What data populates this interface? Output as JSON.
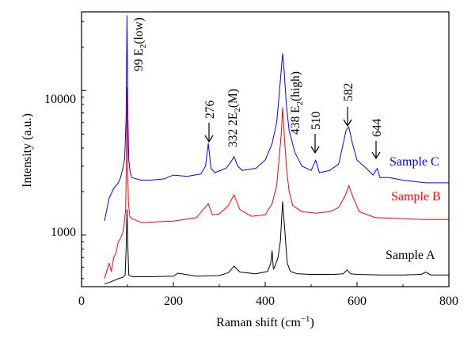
{
  "chart_data": {
    "type": "line",
    "xlabel": "Raman shift (cm",
    "xlabel_sup": "−1",
    "xlabel_close": ")",
    "ylabel": "Intensity (a.u.)",
    "xlim": [
      0,
      800
    ],
    "ylim": [
      440,
      35000
    ],
    "yscale": "log",
    "xticks": [
      0,
      200,
      400,
      600,
      800
    ],
    "yticks": [
      1000,
      10000
    ],
    "grid": false,
    "series": [
      {
        "name": "Sample A",
        "color": "#000000",
        "x": [
          50,
          60,
          70,
          80,
          90,
          95,
          97,
          99,
          101,
          103,
          110,
          150,
          200,
          210,
          250,
          300,
          320,
          332,
          345,
          380,
          405,
          412,
          415,
          418,
          422,
          428,
          433,
          438,
          443,
          448,
          455,
          470,
          500,
          550,
          570,
          578,
          586,
          600,
          650,
          700,
          740,
          750,
          760,
          800
        ],
        "y": [
          460,
          470,
          485,
          500,
          510,
          530,
          800,
          1500,
          800,
          530,
          515,
          515,
          520,
          545,
          520,
          525,
          550,
          610,
          555,
          540,
          560,
          640,
          780,
          580,
          620,
          700,
          900,
          1700,
          1050,
          640,
          560,
          540,
          535,
          535,
          540,
          575,
          540,
          535,
          530,
          530,
          535,
          555,
          530,
          530
        ]
      },
      {
        "name": "Sample B",
        "color": "#ff0000",
        "x": [
          50,
          60,
          65,
          70,
          75,
          80,
          85,
          90,
          93,
          96,
          98,
          99,
          100,
          102,
          105,
          110,
          130,
          150,
          200,
          250,
          265,
          276,
          285,
          300,
          320,
          332,
          345,
          370,
          400,
          415,
          425,
          430,
          435,
          438,
          441,
          446,
          452,
          460,
          480,
          510,
          540,
          560,
          575,
          582,
          592,
          605,
          640,
          700,
          750,
          800
        ],
        "y": [
          500,
          640,
          560,
          700,
          750,
          900,
          950,
          1050,
          1200,
          1500,
          3500,
          10500,
          3500,
          1700,
          1350,
          1300,
          1220,
          1230,
          1250,
          1320,
          1500,
          1650,
          1380,
          1400,
          1600,
          1900,
          1500,
          1350,
          1380,
          1650,
          2200,
          3300,
          5000,
          7600,
          5200,
          3000,
          2000,
          1600,
          1450,
          1420,
          1450,
          1550,
          1900,
          2200,
          1800,
          1450,
          1320,
          1300,
          1280,
          1280
        ]
      },
      {
        "name": "Sample C",
        "color": "#0000ff",
        "x": [
          50,
          60,
          70,
          80,
          85,
          90,
          94,
          97,
          99,
          101,
          103,
          106,
          110,
          130,
          150,
          180,
          200,
          230,
          260,
          270,
          276,
          282,
          290,
          315,
          325,
          332,
          340,
          350,
          380,
          400,
          415,
          425,
          430,
          435,
          438,
          441,
          446,
          452,
          465,
          480,
          500,
          510,
          518,
          540,
          560,
          570,
          576,
          582,
          590,
          600,
          620,
          635,
          644,
          650,
          670,
          700,
          750,
          800
        ],
        "y": [
          1250,
          1800,
          2100,
          2300,
          2500,
          2900,
          3400,
          6500,
          33000,
          6500,
          3300,
          2700,
          2500,
          2400,
          2400,
          2450,
          2600,
          2550,
          2650,
          3000,
          4300,
          2900,
          2700,
          2900,
          3200,
          3500,
          3000,
          2800,
          2900,
          3300,
          4300,
          6000,
          9000,
          14000,
          18000,
          14000,
          8000,
          5300,
          3700,
          3000,
          2800,
          3300,
          2700,
          2800,
          3100,
          4300,
          5300,
          5600,
          4300,
          3300,
          2900,
          2600,
          2900,
          2500,
          2500,
          2400,
          2300,
          2300
        ]
      }
    ]
  },
  "sample_labels": {
    "c": "Sample C",
    "b": "Sample B",
    "a": "Sample A"
  },
  "annotations": {
    "e2_low_prefix": "99 E",
    "e2_low_sub": "2",
    "e2_low_suffix": "(low)",
    "p276": "276",
    "p332_prefix": "332  2E",
    "p332_sub": "2",
    "p332_suffix": "(M)",
    "e2_high_prefix": "438 E",
    "e2_high_sub": "2",
    "e2_high_suffix": "(high)",
    "p510": "510",
    "p582": "582",
    "p644": "644"
  },
  "tick_labels": {
    "x0": "0",
    "x200": "200",
    "x400": "400",
    "x600": "600",
    "x800": "800",
    "y1000": "1000",
    "y10000": "10000"
  }
}
